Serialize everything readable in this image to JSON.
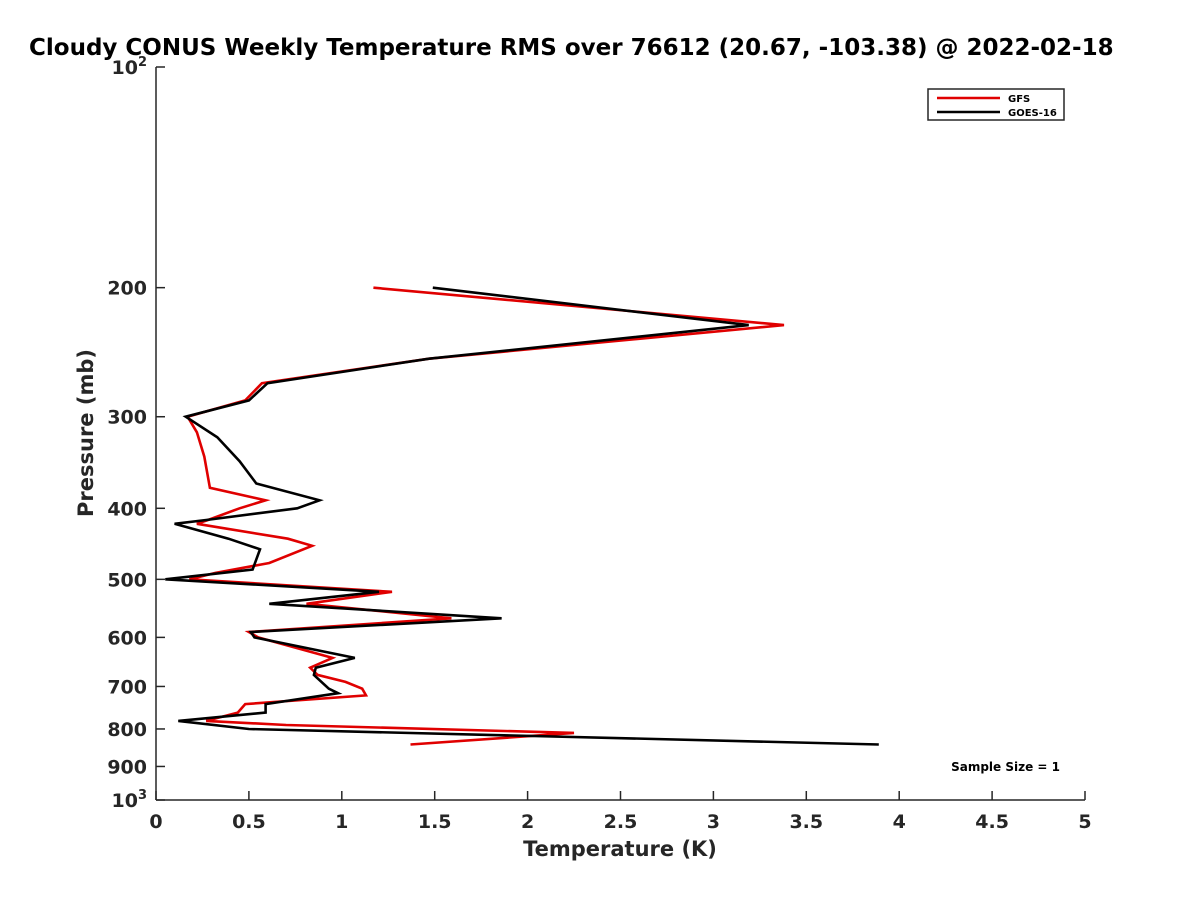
{
  "chart_data": {
    "type": "line",
    "title": "Cloudy CONUS Weekly Temperature RMS over 76612 (20.67, -103.38) @ 2022-02-18",
    "xlabel": "Temperature (K)",
    "ylabel": "Pressure (mb)",
    "xlim": [
      0,
      5
    ],
    "ylim": [
      100,
      1000
    ],
    "yscale": "log",
    "y_reversed": true,
    "x_ticks": [
      "0",
      "0.5",
      "1",
      "1.5",
      "2",
      "2.5",
      "3",
      "3.5",
      "4",
      "4.5",
      "5"
    ],
    "x_tick_values": [
      0,
      0.5,
      1,
      1.5,
      2,
      2.5,
      3,
      3.5,
      4,
      4.5,
      5
    ],
    "y_ticks": [
      "200",
      "300",
      "400",
      "500",
      "600",
      "700",
      "800",
      "900"
    ],
    "y_tick_values": [
      200,
      300,
      400,
      500,
      600,
      700,
      800,
      900
    ],
    "y_ticks_power": [
      {
        "base": "10",
        "exp": "2",
        "value": 100
      },
      {
        "base": "10",
        "exp": "3",
        "value": 1000
      }
    ],
    "legend": {
      "location": "top-right",
      "entries": [
        "GFS",
        "GOES-16"
      ]
    },
    "annotation": "Sample Size = 1",
    "series": [
      {
        "name": "GFS",
        "color": "#e00000",
        "points": [
          [
            1.17,
            200
          ],
          [
            3.38,
            225
          ],
          [
            1.47,
            250
          ],
          [
            0.57,
            270
          ],
          [
            0.48,
            285
          ],
          [
            0.17,
            300
          ],
          [
            0.22,
            315
          ],
          [
            0.26,
            340
          ],
          [
            0.29,
            375
          ],
          [
            0.59,
            390
          ],
          [
            0.45,
            400
          ],
          [
            0.28,
            415
          ],
          [
            0.22,
            420
          ],
          [
            0.71,
            440
          ],
          [
            0.84,
            450
          ],
          [
            0.61,
            475
          ],
          [
            0.32,
            490
          ],
          [
            0.18,
            500
          ],
          [
            1.27,
            520
          ],
          [
            0.81,
            540
          ],
          [
            1.59,
            565
          ],
          [
            0.5,
            590
          ],
          [
            0.55,
            600
          ],
          [
            0.95,
            640
          ],
          [
            0.83,
            660
          ],
          [
            0.87,
            675
          ],
          [
            1.02,
            690
          ],
          [
            1.11,
            705
          ],
          [
            1.13,
            720
          ],
          [
            0.48,
            740
          ],
          [
            0.44,
            760
          ],
          [
            0.27,
            780
          ],
          [
            0.7,
            790
          ],
          [
            2.25,
            810
          ],
          [
            1.37,
            840
          ]
        ]
      },
      {
        "name": "GOES-16",
        "color": "#000000",
        "points": [
          [
            1.49,
            200
          ],
          [
            3.19,
            225
          ],
          [
            1.47,
            250
          ],
          [
            0.6,
            270
          ],
          [
            0.5,
            285
          ],
          [
            0.16,
            300
          ],
          [
            0.33,
            320
          ],
          [
            0.45,
            345
          ],
          [
            0.54,
            370
          ],
          [
            0.88,
            390
          ],
          [
            0.76,
            400
          ],
          [
            0.27,
            415
          ],
          [
            0.1,
            420
          ],
          [
            0.39,
            440
          ],
          [
            0.56,
            455
          ],
          [
            0.52,
            485
          ],
          [
            0.05,
            500
          ],
          [
            1.2,
            520
          ],
          [
            0.61,
            540
          ],
          [
            1.86,
            565
          ],
          [
            0.51,
            590
          ],
          [
            0.53,
            600
          ],
          [
            1.07,
            640
          ],
          [
            0.86,
            660
          ],
          [
            0.85,
            675
          ],
          [
            0.93,
            705
          ],
          [
            0.98,
            715
          ],
          [
            0.59,
            740
          ],
          [
            0.59,
            760
          ],
          [
            0.12,
            780
          ],
          [
            0.5,
            800
          ],
          [
            3.89,
            840
          ]
        ]
      }
    ]
  }
}
